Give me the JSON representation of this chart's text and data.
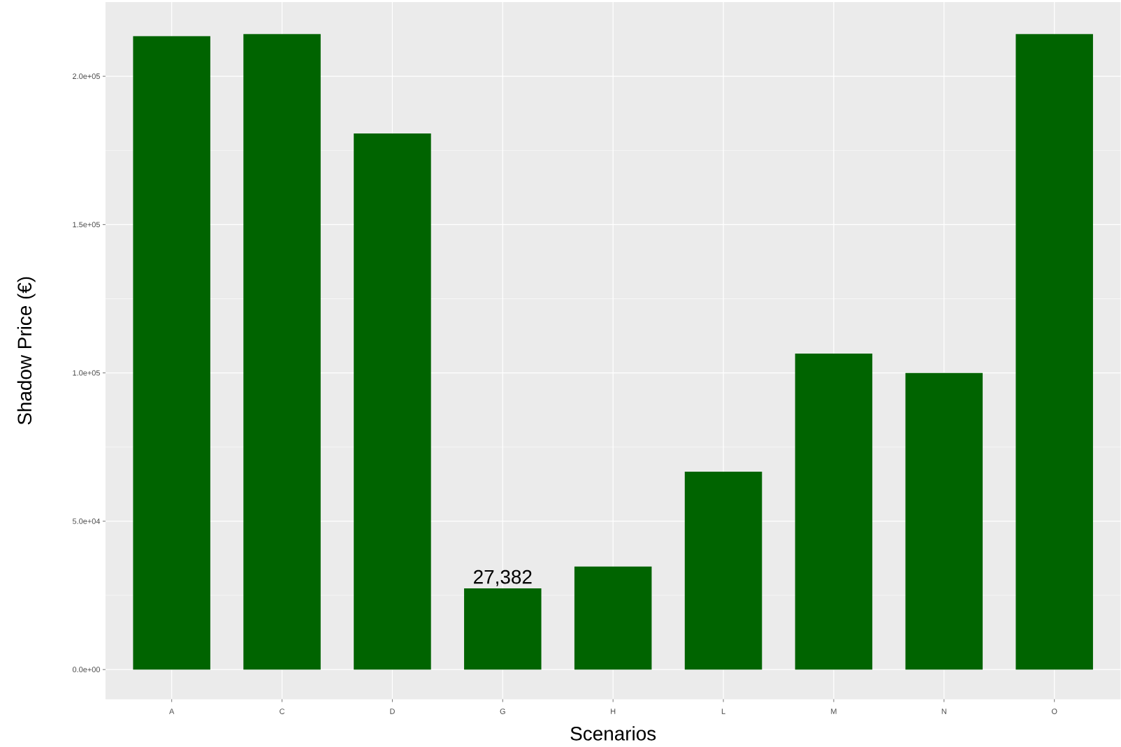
{
  "chart_data": {
    "type": "bar",
    "xlabel": "Scenarios",
    "ylabel": "Shadow Price (€)",
    "categories": [
      "A",
      "C",
      "D",
      "G",
      "H",
      "L",
      "M",
      "N",
      "O"
    ],
    "values": [
      213500,
      214200,
      180700,
      27382,
      34700,
      66700,
      106500,
      100000,
      214200
    ],
    "value_labels": [
      null,
      null,
      null,
      "27,382",
      null,
      null,
      null,
      null,
      null
    ],
    "color": "#006400",
    "ylim": [
      -10000,
      225000
    ],
    "yticks": [
      {
        "value": 0,
        "label": "0.0e+00"
      },
      {
        "value": 50000,
        "label": "5.0e+04"
      },
      {
        "value": 100000,
        "label": "1.0e+05"
      },
      {
        "value": 150000,
        "label": "1.5e+05"
      },
      {
        "value": 200000,
        "label": "2.0e+05"
      }
    ],
    "grid": true
  }
}
